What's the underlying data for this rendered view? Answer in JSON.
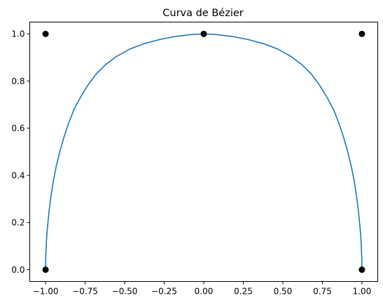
{
  "chart_data": {
    "type": "line",
    "title": "Curva de Bézier",
    "xlabel": "",
    "ylabel": "",
    "xlim": [
      -1.1,
      1.1
    ],
    "ylim": [
      -0.05,
      1.05
    ],
    "grid": false,
    "legend": "none",
    "x_ticks": [
      -1.0,
      -0.75,
      -0.5,
      -0.25,
      0.0,
      0.25,
      0.5,
      0.75,
      1.0
    ],
    "x_tick_labels": [
      "−1.00",
      "−0.75",
      "−0.50",
      "−0.25",
      "0.00",
      "0.25",
      "0.50",
      "0.75",
      "1.00"
    ],
    "y_ticks": [
      0.0,
      0.2,
      0.4,
      0.6,
      0.8,
      1.0
    ],
    "y_tick_labels": [
      "0.0",
      "0.2",
      "0.4",
      "0.6",
      "0.8",
      "1.0"
    ],
    "colors": {
      "curve": "#1f77b4",
      "points": "#000000",
      "axes": "#000000"
    },
    "control_points": [
      {
        "x": -1.0,
        "y": 0.0
      },
      {
        "x": -1.0,
        "y": 1.0
      },
      {
        "x": 0.0,
        "y": 1.0
      },
      {
        "x": 1.0,
        "y": 1.0
      },
      {
        "x": 1.0,
        "y": 0.0
      }
    ],
    "series": [
      {
        "points": [
          [
            -1.0,
            0.0
          ],
          [
            -0.999,
            0.05
          ],
          [
            -0.996,
            0.1
          ],
          [
            -0.992,
            0.15
          ],
          [
            -0.985,
            0.2
          ],
          [
            -0.976,
            0.26
          ],
          [
            -0.964,
            0.32
          ],
          [
            -0.95,
            0.38
          ],
          [
            -0.932,
            0.44
          ],
          [
            -0.91,
            0.5
          ],
          [
            -0.885,
            0.56
          ],
          [
            -0.855,
            0.62
          ],
          [
            -0.82,
            0.68
          ],
          [
            -0.78,
            0.73
          ],
          [
            -0.735,
            0.78
          ],
          [
            -0.68,
            0.83
          ],
          [
            -0.62,
            0.87
          ],
          [
            -0.55,
            0.905
          ],
          [
            -0.47,
            0.935
          ],
          [
            -0.38,
            0.958
          ],
          [
            -0.28,
            0.976
          ],
          [
            -0.18,
            0.989
          ],
          [
            -0.08,
            0.997
          ],
          [
            0.0,
            1.0
          ],
          [
            0.08,
            0.997
          ],
          [
            0.18,
            0.989
          ],
          [
            0.28,
            0.976
          ],
          [
            0.38,
            0.958
          ],
          [
            0.47,
            0.935
          ],
          [
            0.55,
            0.905
          ],
          [
            0.62,
            0.87
          ],
          [
            0.68,
            0.83
          ],
          [
            0.735,
            0.78
          ],
          [
            0.78,
            0.73
          ],
          [
            0.82,
            0.68
          ],
          [
            0.855,
            0.62
          ],
          [
            0.885,
            0.56
          ],
          [
            0.91,
            0.5
          ],
          [
            0.932,
            0.44
          ],
          [
            0.95,
            0.38
          ],
          [
            0.964,
            0.32
          ],
          [
            0.976,
            0.26
          ],
          [
            0.985,
            0.2
          ],
          [
            0.992,
            0.15
          ],
          [
            0.996,
            0.1
          ],
          [
            0.999,
            0.05
          ],
          [
            1.0,
            0.0
          ]
        ]
      }
    ]
  }
}
